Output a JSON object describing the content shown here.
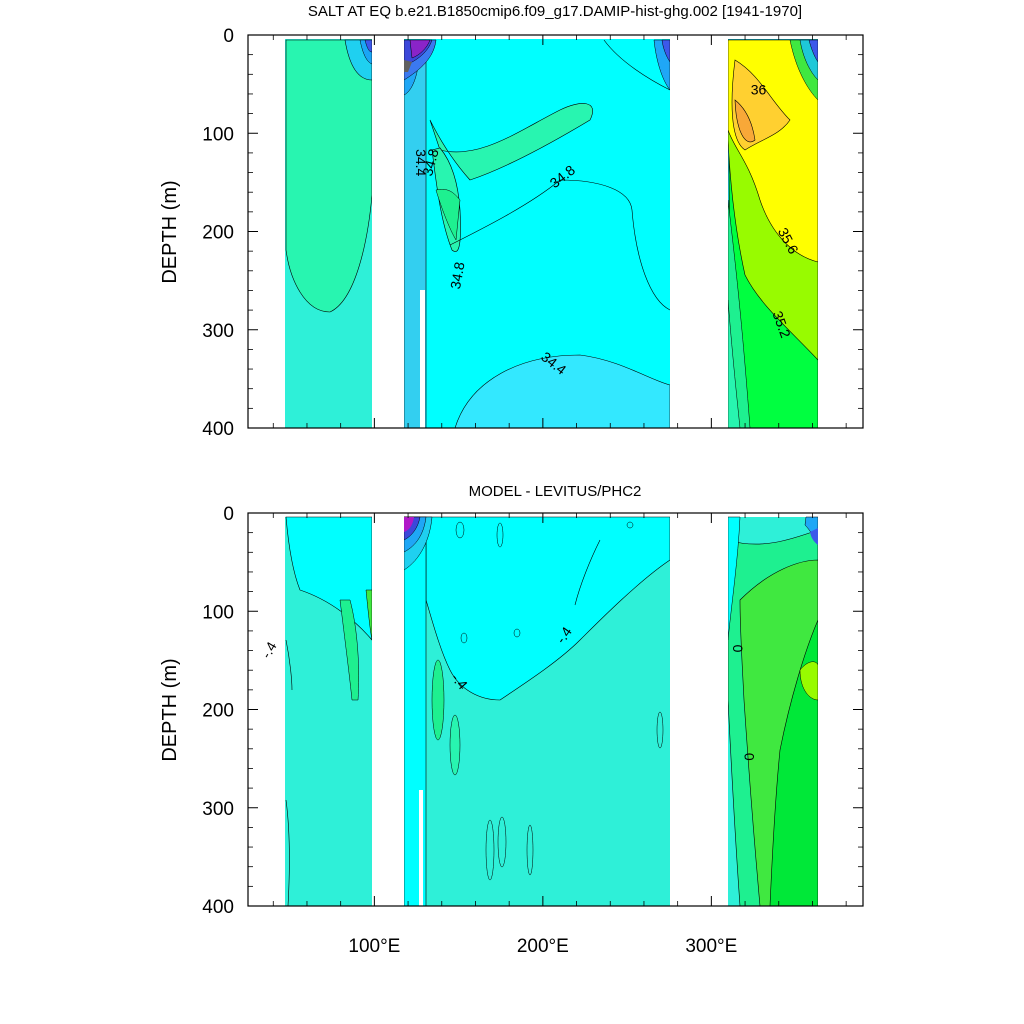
{
  "figure": {
    "top_title": "SALT AT EQ b.e21.B1850cmip6.f09_g17.DAMIP-hist-ghg.002 [1941-1970]",
    "bottom_title": "MODEL - LEVITUS/PHC2"
  },
  "chart_data": [
    {
      "type": "contour",
      "title": "SALT AT EQ b.e21.B1850cmip6.f09_g17.DAMIP-hist-ghg.002 [1941-1970]",
      "xlabel": "",
      "ylabel": "DEPTH (m)",
      "x_ticks": [
        "100°E",
        "200°E",
        "300°E"
      ],
      "x_tick_values": [
        100,
        200,
        300
      ],
      "xlim": [
        25,
        390
      ],
      "y_ticks": [
        "0",
        "100",
        "200",
        "300",
        "400"
      ],
      "y_tick_values": [
        0,
        100,
        200,
        300,
        400
      ],
      "ylim": [
        400,
        0
      ],
      "land_gaps_lon": [
        [
          98,
          117
        ],
        [
          280,
          315
        ]
      ],
      "contour_labels": [
        {
          "text": "36",
          "lon": 328,
          "depth": 57
        },
        {
          "text": "34.8",
          "lon": 212,
          "depth": 145,
          "rotate": -38
        },
        {
          "text": "34.4",
          "lon": 127,
          "depth": 130,
          "rotate": 90
        },
        {
          "text": "34.8",
          "lon": 134,
          "depth": 130,
          "rotate": -75
        },
        {
          "text": "35.6",
          "lon": 345,
          "depth": 210,
          "rotate": 62
        },
        {
          "text": "34.8",
          "lon": 150,
          "depth": 245,
          "rotate": -80
        },
        {
          "text": "35.2",
          "lon": 341,
          "depth": 295,
          "rotate": 70
        },
        {
          "text": "34.4",
          "lon": 206,
          "depth": 335,
          "rotate": 38
        }
      ]
    },
    {
      "type": "contour",
      "title": "MODEL - LEVITUS/PHC2",
      "xlabel": "",
      "ylabel": "DEPTH (m)",
      "x_ticks": [
        "100°E",
        "200°E",
        "300°E"
      ],
      "x_tick_values": [
        100,
        200,
        300
      ],
      "xlim": [
        25,
        390
      ],
      "y_ticks": [
        "0",
        "100",
        "200",
        "300",
        "400"
      ],
      "y_tick_values": [
        0,
        100,
        200,
        300,
        400
      ],
      "ylim": [
        400,
        0
      ],
      "land_gaps_lon": [
        [
          98,
          117
        ],
        [
          280,
          315
        ]
      ],
      "contour_labels": [
        {
          "text": "-.4",
          "lon": 38,
          "depth": 140,
          "rotate": -60
        },
        {
          "text": "-.4",
          "lon": 213,
          "depth": 125,
          "rotate": -55
        },
        {
          "text": "-.4",
          "lon": 150,
          "depth": 172,
          "rotate": 50
        },
        {
          "text": "0",
          "lon": 315,
          "depth": 138,
          "rotate": 90
        },
        {
          "text": "0",
          "lon": 323,
          "depth": 248,
          "rotate": -90
        }
      ]
    }
  ]
}
